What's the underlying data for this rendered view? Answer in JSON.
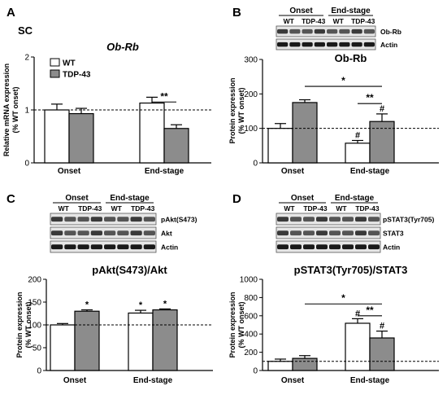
{
  "chart_data": [
    {
      "panel": "A",
      "tissue_label": "SC",
      "type": "bar",
      "title": "Ob-Rb",
      "ylabel": "Relative mRNA expression\n(% WT onset)",
      "ylim": [
        0,
        2
      ],
      "yticks": [
        "0",
        "1",
        "2"
      ],
      "groups": [
        "Onset",
        "End-stage"
      ],
      "legend": [
        "WT",
        "TDP-43"
      ],
      "legend_placement": "top-left",
      "series": [
        {
          "name": "WT",
          "values": [
            1.0,
            1.13
          ],
          "errors": [
            0.11,
            0.11
          ],
          "fill": "#ffffff"
        },
        {
          "name": "TDP-43",
          "values": [
            0.93,
            0.65
          ],
          "errors": [
            0.1,
            0.07
          ],
          "fill": "#8c8c8c"
        }
      ],
      "reference_line": 1.0,
      "significance": [
        {
          "label": "**",
          "between": [
            [
              1,
              0
            ],
            [
              1,
              1
            ]
          ],
          "y": 1.15
        }
      ],
      "bar_marks": []
    },
    {
      "panel": "B",
      "type": "bar",
      "title": "Ob-Rb",
      "ylabel": "Protein expression\n(% WT onset)",
      "ylim": [
        0,
        300
      ],
      "yticks": [
        "0",
        "100",
        "200",
        "300"
      ],
      "groups": [
        "Onset",
        "End-stage"
      ],
      "series": [
        {
          "name": "WT",
          "values": [
            100,
            57
          ],
          "errors": [
            14,
            8
          ],
          "fill": "#ffffff"
        },
        {
          "name": "TDP-43",
          "values": [
            175,
            120
          ],
          "errors": [
            8,
            22
          ],
          "fill": "#8c8c8c"
        }
      ],
      "reference_line": 100,
      "significance": [
        {
          "label": "*",
          "between": [
            [
              0,
              1
            ],
            [
              1,
              1
            ]
          ],
          "y": 222
        },
        {
          "label": "**",
          "between": [
            [
              1,
              0
            ],
            [
              1,
              1
            ]
          ],
          "y": 172
        }
      ],
      "bar_marks": [
        {
          "label": "#",
          "group": 1,
          "series": 0
        },
        {
          "label": "#",
          "group": 1,
          "series": 1
        }
      ],
      "blot": {
        "headers": [
          "Onset",
          "End-stage"
        ],
        "lanes": [
          "WT",
          "TDP-43",
          "WT",
          "TDP-43"
        ],
        "rows": [
          "Ob-Rb",
          "Actin"
        ]
      }
    },
    {
      "panel": "C",
      "type": "bar",
      "title": "pAkt(S473)/Akt",
      "ylabel": "Protein expression\n(% WT onset)",
      "ylim": [
        0,
        200
      ],
      "yticks": [
        "0",
        "50",
        "100",
        "150",
        "200"
      ],
      "groups": [
        "Onset",
        "End-stage"
      ],
      "series": [
        {
          "name": "WT",
          "values": [
            100,
            126
          ],
          "errors": [
            3,
            6
          ],
          "fill": "#ffffff"
        },
        {
          "name": "TDP-43",
          "values": [
            130,
            133
          ],
          "errors": [
            3,
            2
          ],
          "fill": "#8c8c8c"
        }
      ],
      "reference_line": 100,
      "significance": [],
      "bar_marks": [
        {
          "label": "*",
          "group": 0,
          "series": 1
        },
        {
          "label": "*",
          "group": 1,
          "series": 0
        },
        {
          "label": "*",
          "group": 1,
          "series": 1
        }
      ],
      "blot": {
        "headers": [
          "Onset",
          "End-stage"
        ],
        "lanes": [
          "WT",
          "TDP-43",
          "WT",
          "TDP-43"
        ],
        "rows": [
          "pAkt(S473)",
          "Akt",
          "Actin"
        ]
      }
    },
    {
      "panel": "D",
      "type": "bar",
      "title": "pSTAT3(Tyr705)/STAT3",
      "ylabel": "Protein expression\n(% WT onset)",
      "ylim": [
        0,
        1000
      ],
      "yticks": [
        "0",
        "200",
        "400",
        "600",
        "800",
        "1000"
      ],
      "groups": [
        "Onset",
        "End-stage"
      ],
      "series": [
        {
          "name": "WT",
          "values": [
            100,
            518
          ],
          "errors": [
            25,
            50
          ],
          "fill": "#ffffff"
        },
        {
          "name": "TDP-43",
          "values": [
            133,
            357
          ],
          "errors": [
            30,
            75
          ],
          "fill": "#8c8c8c"
        }
      ],
      "reference_line": 100,
      "significance": [
        {
          "label": "*",
          "between": [
            [
              0,
              1
            ],
            [
              1,
              1
            ]
          ],
          "y": 730
        },
        {
          "label": "**",
          "between": [
            [
              1,
              0
            ],
            [
              1,
              1
            ]
          ],
          "y": 600
        }
      ],
      "bar_marks": [
        {
          "label": "#",
          "group": 1,
          "series": 0
        },
        {
          "label": "#",
          "group": 1,
          "series": 1
        }
      ],
      "blot": {
        "headers": [
          "Onset",
          "End-stage"
        ],
        "lanes": [
          "WT",
          "TDP-43",
          "WT",
          "TDP-43"
        ],
        "rows": [
          "pSTAT3(Tyr705)",
          "STAT3",
          "Actin"
        ]
      }
    }
  ]
}
